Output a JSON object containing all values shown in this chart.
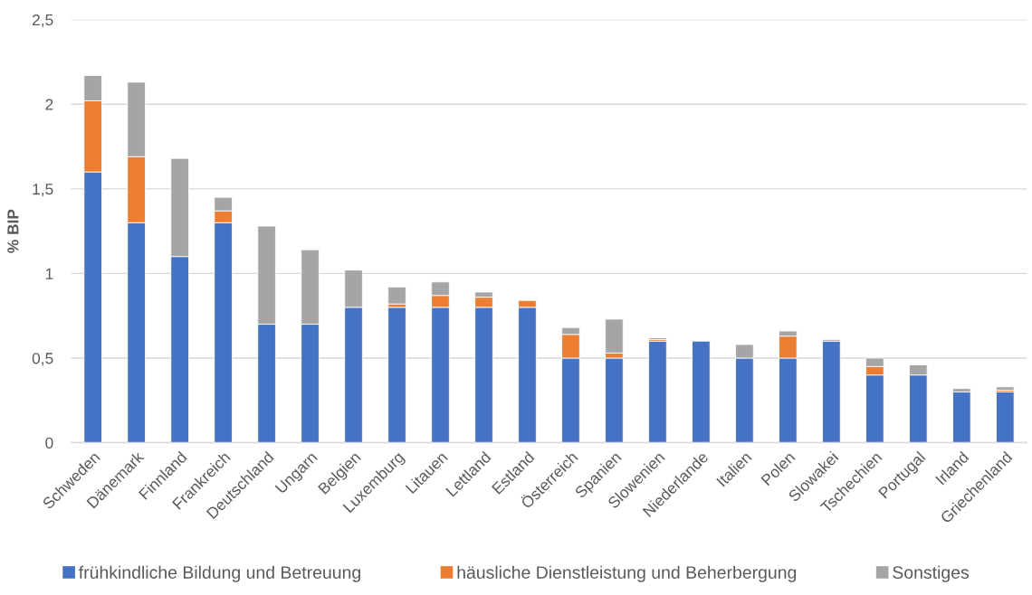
{
  "chart_data": {
    "type": "bar",
    "stacked": true,
    "ylabel": "% BIP",
    "categories": [
      "Schweden",
      "Dänemark",
      "Finnland",
      "Frankreich",
      "Deutschland",
      "Ungarn",
      "Belgien",
      "Luxemburg",
      "Litauen",
      "Lettland",
      "Estland",
      "Österreich",
      "Spanien",
      "Slowenien",
      "Niederlande",
      "Italien",
      "Polen",
      "Slowakei",
      "Tschechien",
      "Portugal",
      "Irland",
      "Griechenland"
    ],
    "series": [
      {
        "name": "frühkindliche Bildung und Betreuung",
        "color": "#4472c4",
        "values": [
          1.6,
          1.3,
          1.1,
          1.3,
          0.7,
          0.7,
          0.8,
          0.8,
          0.8,
          0.8,
          0.8,
          0.5,
          0.5,
          0.6,
          0.6,
          0.5,
          0.5,
          0.6,
          0.4,
          0.4,
          0.3,
          0.3
        ]
      },
      {
        "name": "häusliche Dienstleistung und Beherbergung",
        "color": "#ed7d31",
        "values": [
          0.42,
          0.39,
          null,
          0.07,
          null,
          null,
          null,
          0.02,
          0.07,
          0.06,
          0.04,
          0.14,
          0.03,
          0.01,
          null,
          null,
          0.13,
          null,
          0.05,
          null,
          null,
          0.01
        ]
      },
      {
        "name": "Sonstiges",
        "color": "#a5a5a5",
        "values": [
          0.15,
          0.44,
          0.58,
          0.08,
          0.58,
          0.44,
          0.22,
          0.1,
          0.08,
          0.03,
          null,
          0.04,
          0.2,
          0.01,
          null,
          0.08,
          0.03,
          0.01,
          0.05,
          0.06,
          0.02,
          0.02
        ]
      }
    ],
    "ylim": [
      0,
      2.5
    ],
    "yticks": [
      0,
      {
        "value": 0.5,
        "label": "0,5"
      },
      1,
      {
        "value": 1.5,
        "label": "1,5"
      },
      2,
      {
        "value": 2.5,
        "label": "2,5"
      }
    ],
    "grid": "y",
    "legend": "bottom"
  }
}
